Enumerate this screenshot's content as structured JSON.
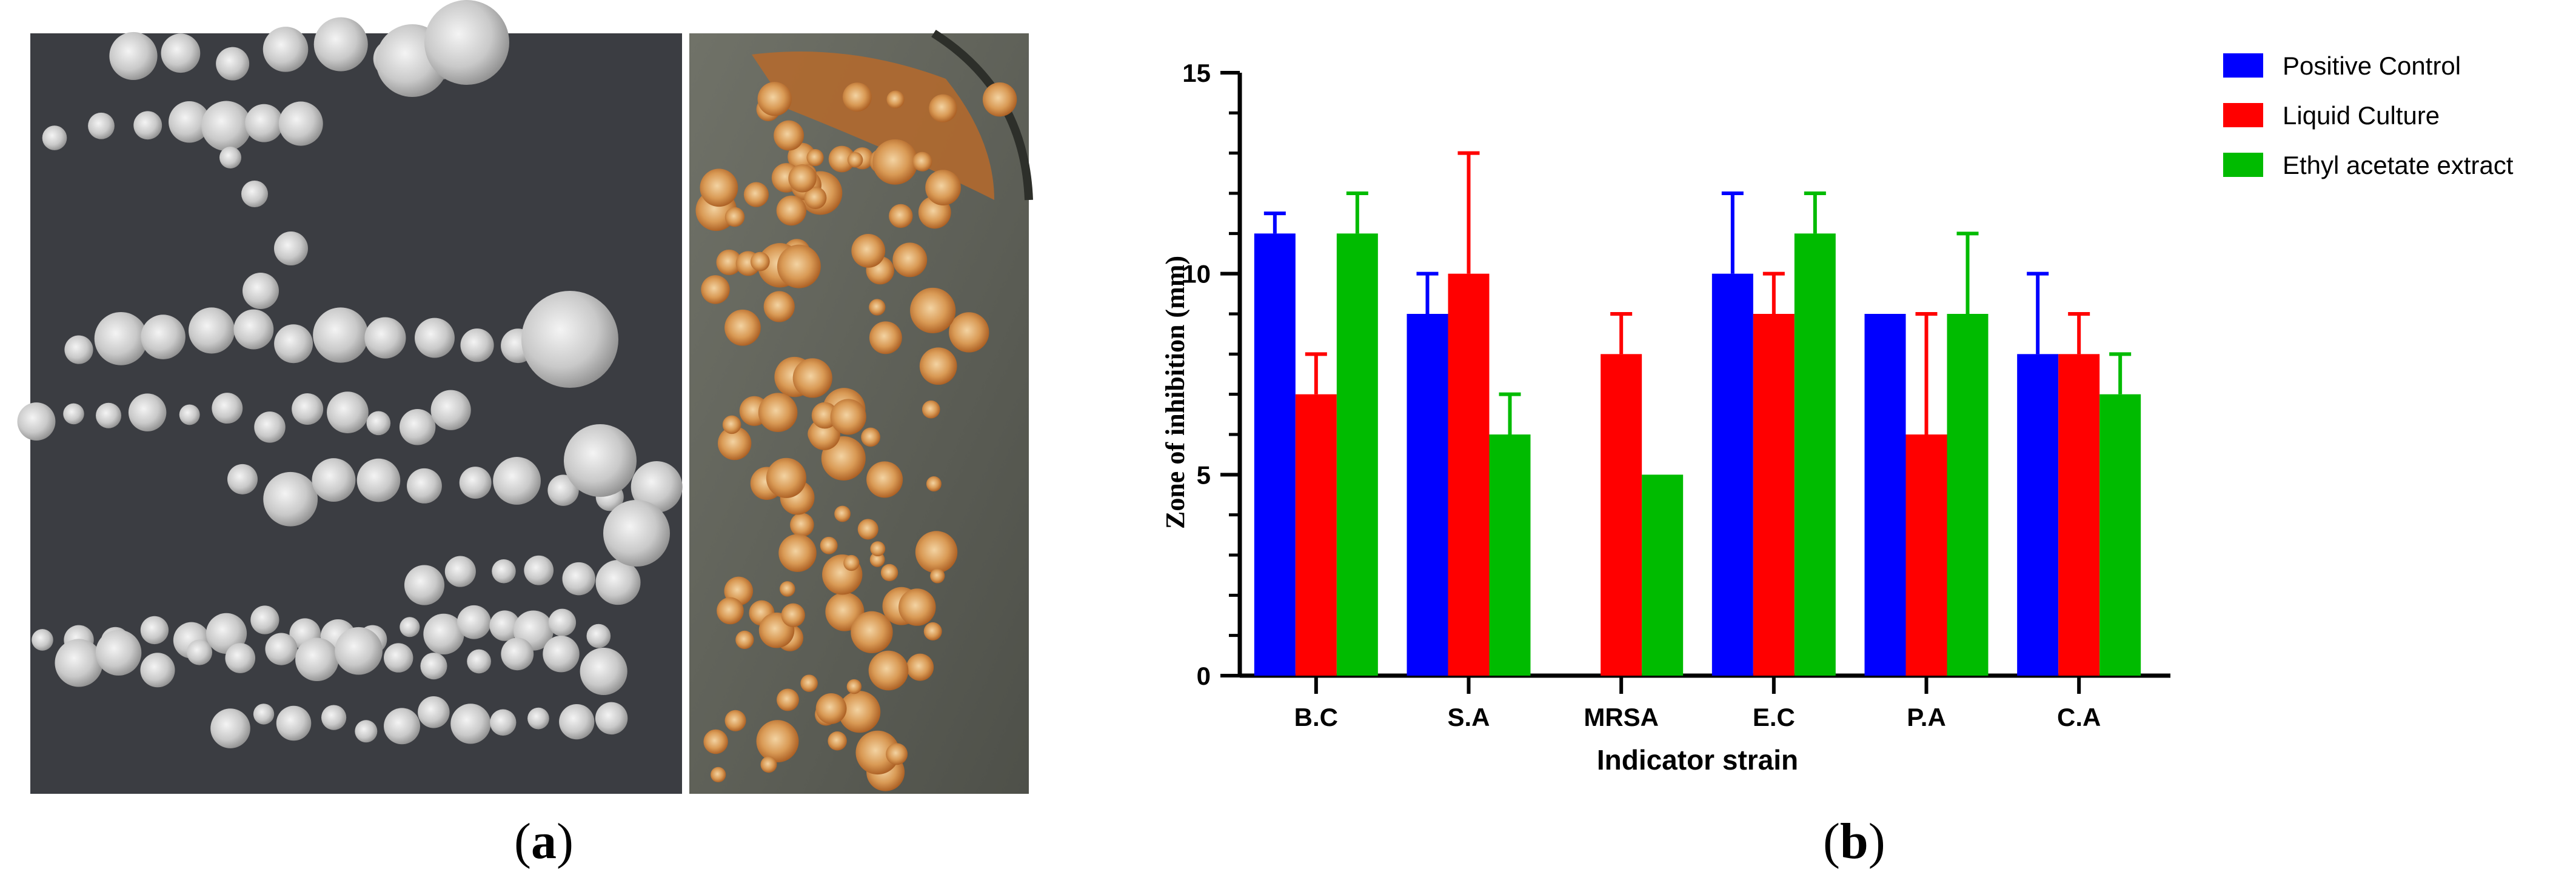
{
  "panel_a": {
    "caption_open": "(",
    "caption_letter": "a",
    "caption_close": ")"
  },
  "panel_b": {
    "caption_open": "(",
    "caption_letter": "b",
    "caption_close": ")"
  },
  "chart_data": {
    "type": "bar",
    "title": "",
    "xlabel": "Indicator strain",
    "ylabel": "Zone of inhibition (mm)",
    "ylim": [
      0,
      15
    ],
    "yticks": [
      0,
      5,
      10,
      15
    ],
    "grid": false,
    "legend_position": "top-right",
    "categories": [
      "B.C",
      "S.A",
      "MRSA",
      "E.C",
      "P.A",
      "C.A"
    ],
    "series": [
      {
        "name": "Positive Control",
        "color": "#0000ff",
        "values": [
          11,
          9,
          null,
          10,
          9,
          8
        ],
        "errors": [
          0.5,
          1,
          null,
          2,
          null,
          2
        ]
      },
      {
        "name": "Liquid Culture",
        "color": "#ff0000",
        "values": [
          7,
          10,
          8,
          9,
          6,
          8
        ],
        "errors": [
          1,
          3,
          1,
          1,
          3,
          1
        ]
      },
      {
        "name": "Ethyl acetate extract",
        "color": "#00bb00",
        "values": [
          11,
          6,
          5,
          11,
          9,
          7
        ],
        "errors": [
          1,
          1,
          null,
          1,
          2,
          1
        ]
      }
    ]
  }
}
